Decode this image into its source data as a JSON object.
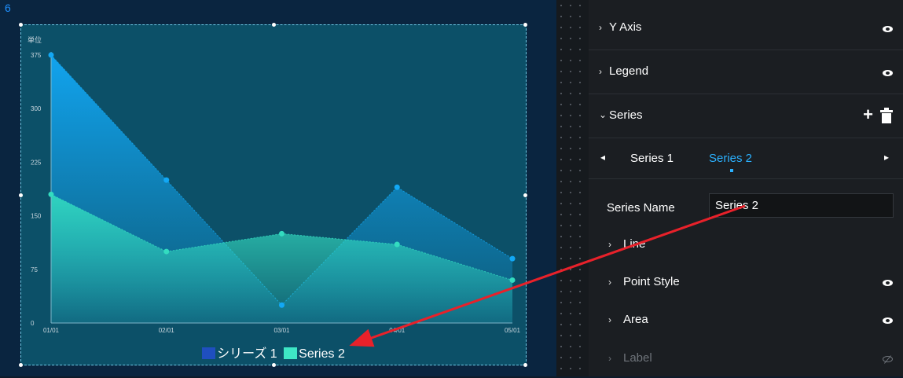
{
  "canvas": {
    "corner_label": "6"
  },
  "chart_data": {
    "type": "area",
    "unit_label": "単位",
    "categories": [
      "01/01",
      "02/01",
      "03/01",
      "04/01",
      "05/01"
    ],
    "yticks": [
      0,
      75,
      150,
      225,
      300,
      375
    ],
    "ylim": [
      0,
      375
    ],
    "grid": false,
    "legend_position": "bottom-center",
    "series": [
      {
        "name": "シリーズ 1",
        "values": [
          375,
          200,
          25,
          190,
          90
        ],
        "color": "#12a8f5",
        "legend_color": "#1f4fbf"
      },
      {
        "name": "Series 2",
        "values": [
          180,
          100,
          125,
          110,
          60
        ],
        "color": "#33dcc0",
        "legend_color": "#3ee6c5"
      }
    ]
  },
  "panel": {
    "y_axis_label": "Y Axis",
    "legend_label": "Legend",
    "series_label": "Series",
    "add_icon_glyph": "+",
    "tabs": [
      {
        "label": "Series 1"
      },
      {
        "label": "Series 2"
      }
    ],
    "series_name_label": "Series Name",
    "series_name_value": "Series 2",
    "sub_items": {
      "line": "Line",
      "point_style": "Point Style",
      "area": "Area",
      "label": "Label"
    }
  },
  "colors": {
    "accent": "#2bb1ff",
    "annotation_arrow": "#e8212a"
  },
  "icons": {
    "collapsed": "chevron-right-icon",
    "expanded": "chevron-down-icon",
    "visible": "eye-icon",
    "hidden": "eye-off-icon",
    "add": "plus-icon",
    "delete": "trash-icon"
  }
}
